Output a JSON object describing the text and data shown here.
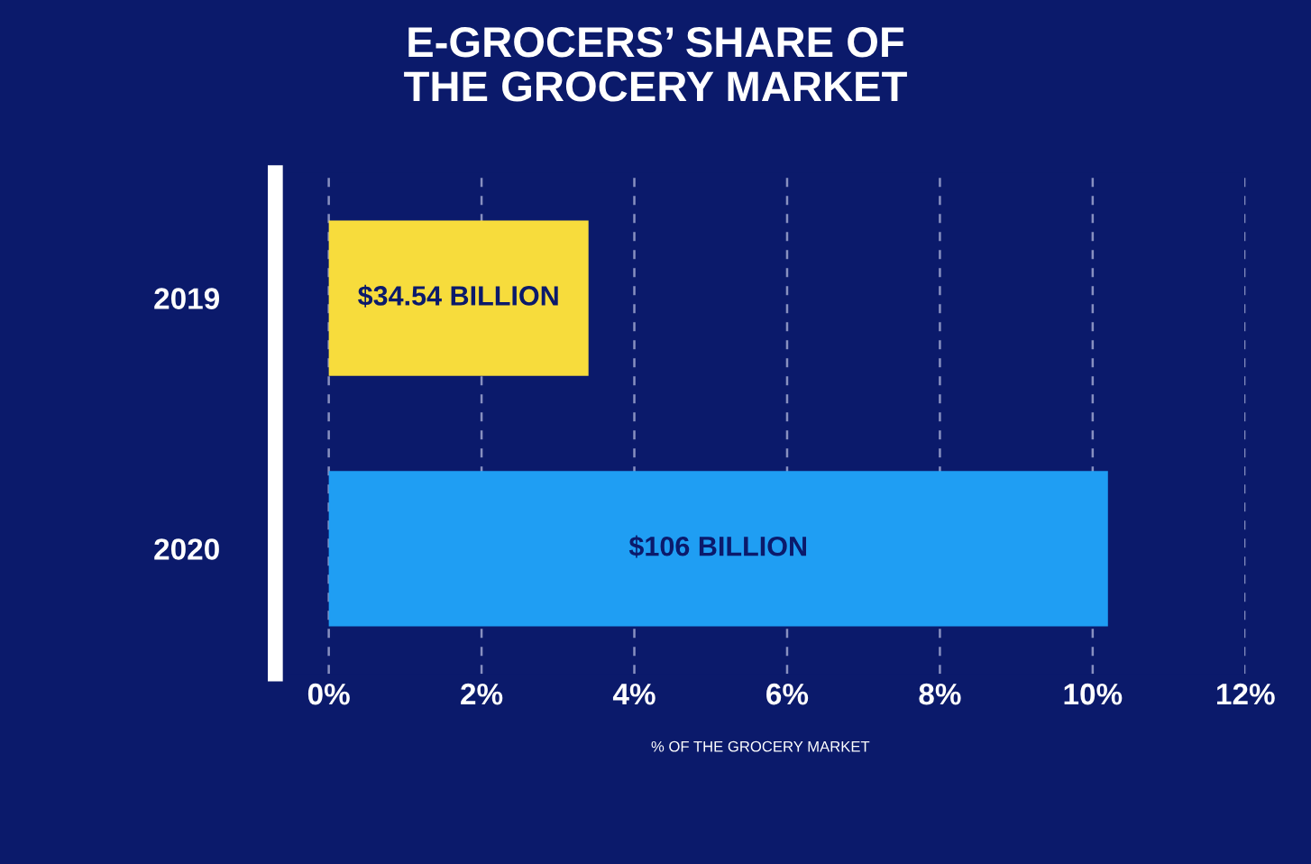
{
  "chart_data": {
    "type": "bar",
    "orientation": "horizontal",
    "title": "E-GROCERS’ SHARE OF\nTHE GROCERY MARKET",
    "xlabel": "% OF THE GROCERY MARKET",
    "categories": [
      "2019",
      "2020"
    ],
    "values": [
      3.4,
      10.2
    ],
    "colors": [
      "#f7dc3c",
      "#1f9ef3"
    ],
    "annotations": [
      "$34.54 BILLION",
      "$106 BILLION"
    ],
    "xlim": [
      -0.7,
      12
    ],
    "xticks": [
      {
        "value": 0,
        "label": "0%"
      },
      {
        "value": 2,
        "label": "2%"
      },
      {
        "value": 4,
        "label": "4%"
      },
      {
        "value": 6,
        "label": "6%"
      },
      {
        "value": 8,
        "label": "8%"
      },
      {
        "value": 10,
        "label": "10%"
      },
      {
        "value": 12,
        "label": "12%"
      }
    ],
    "grid": "x"
  }
}
